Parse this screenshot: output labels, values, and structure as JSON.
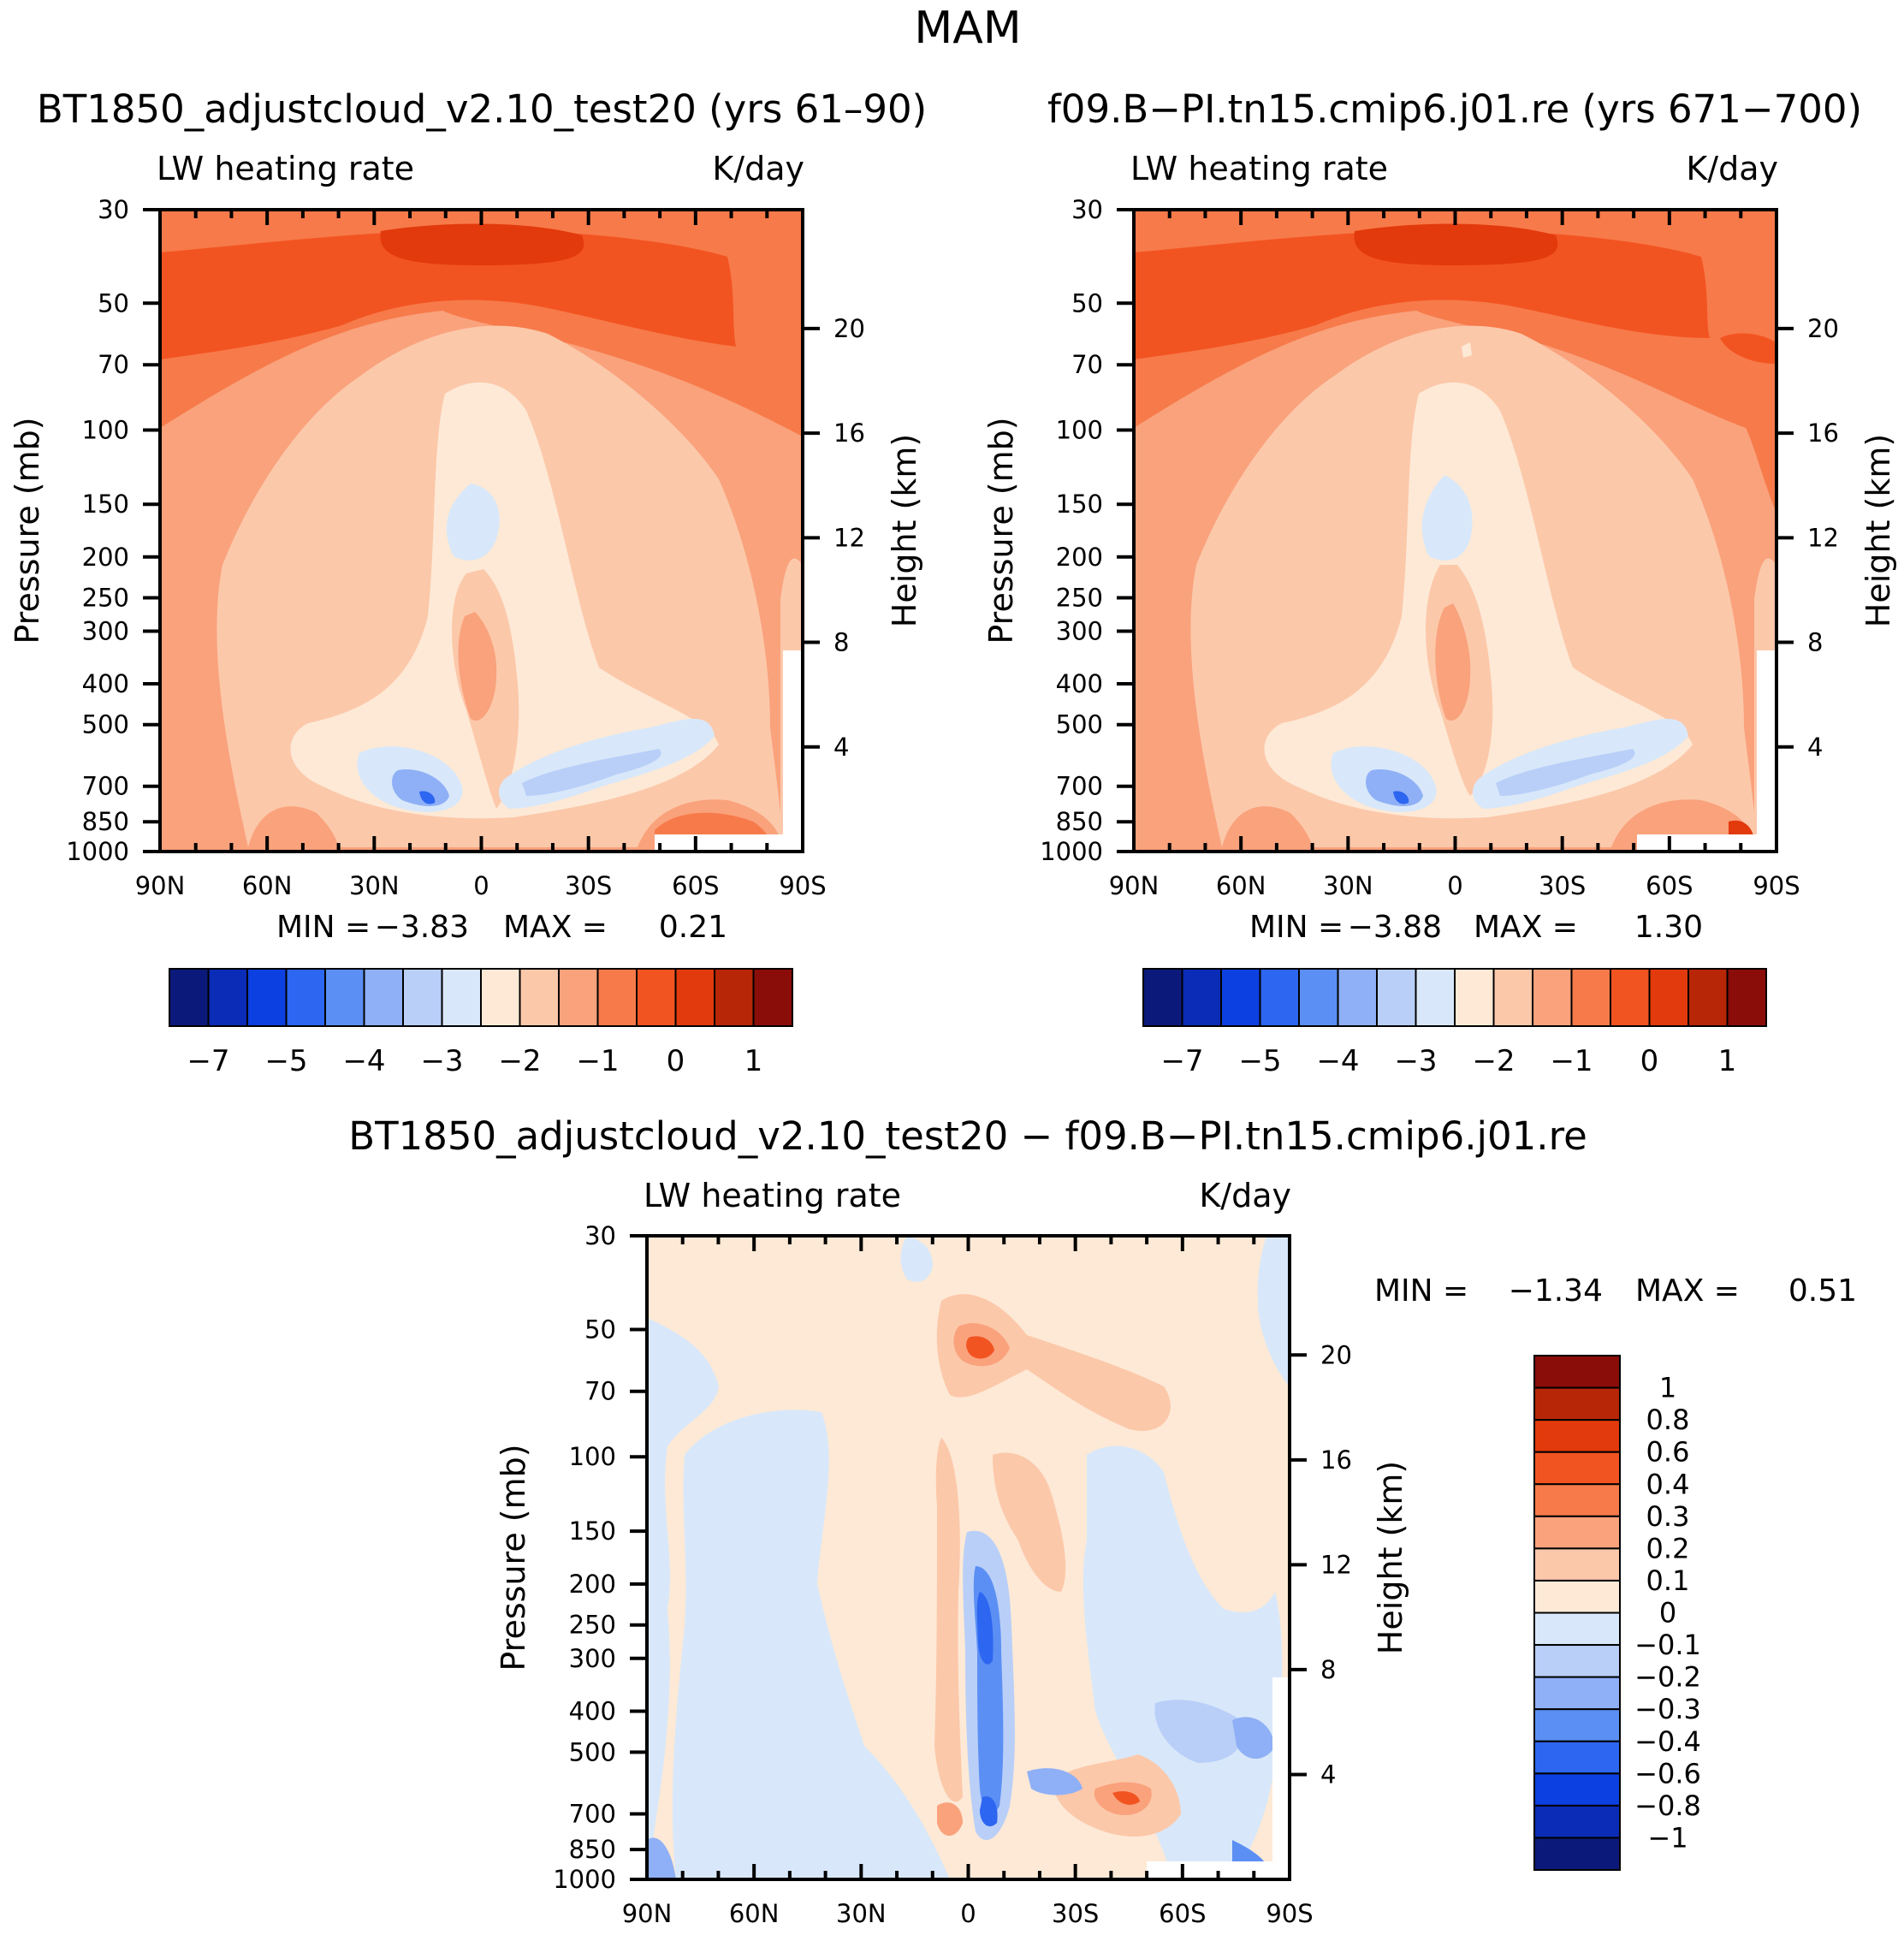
{
  "figure_title": "MAM",
  "chart_data": [
    {
      "type": "heatmap",
      "panel": "left",
      "case_title": "BT1850_adjustcloud_v2.10_test20 (yrs 61–90)",
      "variable": "LW heating rate",
      "units": "K/day",
      "ylabel": "Pressure (mb)",
      "ylabel_right": "Height (km)",
      "x_ticks": [
        "90N",
        "60N",
        "30N",
        "0",
        "30S",
        "60S",
        "90S"
      ],
      "pressure_ticks": [
        "30",
        "50",
        "70",
        "100",
        "150",
        "200",
        "250",
        "300",
        "400",
        "500",
        "700",
        "850",
        "1000"
      ],
      "height_ticks": [
        "20",
        "16",
        "12",
        "8",
        "4"
      ],
      "min_label": "MIN  =",
      "min_value": "−3.83",
      "max_label": "MAX  =",
      "max_value": "0.21",
      "colorbar_labels": [
        "−7",
        "−5",
        "−4",
        "−3",
        "−2",
        "−1",
        "0",
        "1"
      ]
    },
    {
      "type": "heatmap",
      "panel": "right",
      "case_title": "f09.B−PI.tn15.cmip6.j01.re (yrs 671−700)",
      "variable": "LW heating rate",
      "units": "K/day",
      "ylabel": "Pressure (mb)",
      "ylabel_right": "Height (km)",
      "x_ticks": [
        "90N",
        "60N",
        "30N",
        "0",
        "30S",
        "60S",
        "90S"
      ],
      "pressure_ticks": [
        "30",
        "50",
        "70",
        "100",
        "150",
        "200",
        "250",
        "300",
        "400",
        "500",
        "700",
        "850",
        "1000"
      ],
      "height_ticks": [
        "20",
        "16",
        "12",
        "8",
        "4"
      ],
      "min_label": "MIN  =",
      "min_value": "−3.88",
      "max_label": "MAX  =",
      "max_value": "1.30",
      "colorbar_labels": [
        "−7",
        "−5",
        "−4",
        "−3",
        "−2",
        "−1",
        "0",
        "1"
      ]
    },
    {
      "type": "heatmap",
      "panel": "difference",
      "case_title": "BT1850_adjustcloud_v2.10_test20 − f09.B−PI.tn15.cmip6.j01.re",
      "variable": "LW heating rate",
      "units": "K/day",
      "ylabel": "Pressure (mb)",
      "ylabel_right": "Height (km)",
      "x_ticks": [
        "90N",
        "60N",
        "30N",
        "0",
        "30S",
        "60S",
        "90S"
      ],
      "pressure_ticks": [
        "30",
        "50",
        "70",
        "100",
        "150",
        "200",
        "250",
        "300",
        "400",
        "500",
        "700",
        "850",
        "1000"
      ],
      "height_ticks": [
        "20",
        "16",
        "12",
        "8",
        "4"
      ],
      "min_label": "MIN  =",
      "min_value": "−1.34",
      "max_label": "MAX  =",
      "max_value": "0.51",
      "colorbar_labels": [
        "1",
        "0.8",
        "0.6",
        "0.4",
        "0.3",
        "0.2",
        "0.1",
        "0",
        "−0.1",
        "−0.2",
        "−0.3",
        "−0.4",
        "−0.6",
        "−0.8",
        "−1"
      ]
    }
  ],
  "palette": [
    "#0b1a7a",
    "#0a2cb6",
    "#0d40e0",
    "#2d66f0",
    "#5b8ff4",
    "#8fb0f6",
    "#b9cff8",
    "#d8e8fa",
    "#fde9d6",
    "#fcc8aa",
    "#f9a27c",
    "#f77a4a",
    "#f25421",
    "#e23a0c",
    "#b82608",
    "#8a0d0a"
  ]
}
